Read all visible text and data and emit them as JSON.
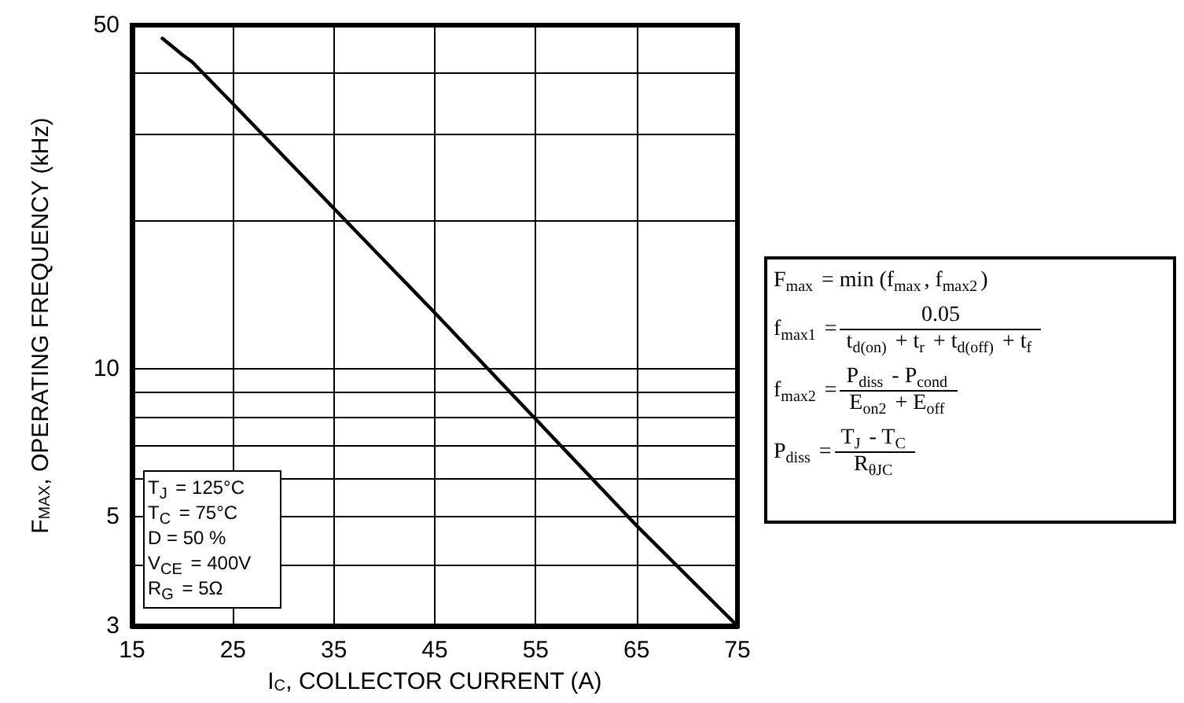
{
  "chart_data": {
    "type": "line",
    "xlabel": "I$_{C}$, COLLECTOR CURRENT (A)",
    "ylabel": "F$_{MAX}$, OPERATING FREQUENCY (kHz)",
    "x": [
      18,
      20,
      21,
      25,
      35,
      45,
      55,
      65,
      75
    ],
    "series": [
      {
        "color": "#000000",
        "values": [
          47,
          43.5,
          42,
          34.6,
          21.2,
          13,
          7.9,
          4.8,
          3
        ]
      }
    ],
    "xlim": [
      15,
      75
    ],
    "xticks": [
      15,
      25,
      35,
      45,
      55,
      65,
      75
    ],
    "ylim": [
      3,
      50
    ],
    "yticks": [
      3,
      {
        "value": 4,
        "label": null
      },
      5,
      {
        "value": 6,
        "label": null
      },
      {
        "value": 7,
        "label": null
      },
      {
        "value": 8,
        "label": null
      },
      {
        "value": 9,
        "label": null
      },
      10,
      {
        "value": 20,
        "label": null
      },
      {
        "value": 30,
        "label": null
      },
      {
        "value": 40,
        "label": null
      },
      50
    ],
    "log": "y",
    "grid": true,
    "marker": "none",
    "line_style": "solid",
    "annotations": [
      "T$_{J}$ =  125°C",
      "T$_{C}$ =  75°C",
      "D = 50 %",
      "V$_{CE}$ =  400V",
      "R$_{G}$ = 5Ω",
      "F$_{max}$ = min (f$_{max}$, f$_{max2}$)",
      "f$_{max1}$ =",
      "0.05",
      "t$_{d(on)}$ + t$_{r}$ + t$_{d(off)}$ + t$_{f}$",
      "f$_{max2}$ =",
      "P$_{diss}$ - P$_{cond}$",
      "E$_{on2}$ + E$_{off}$",
      "P$_{diss}$ =",
      "T$_{J}$ - T$_{C}$",
      "R$_{θJC}$"
    ]
  }
}
